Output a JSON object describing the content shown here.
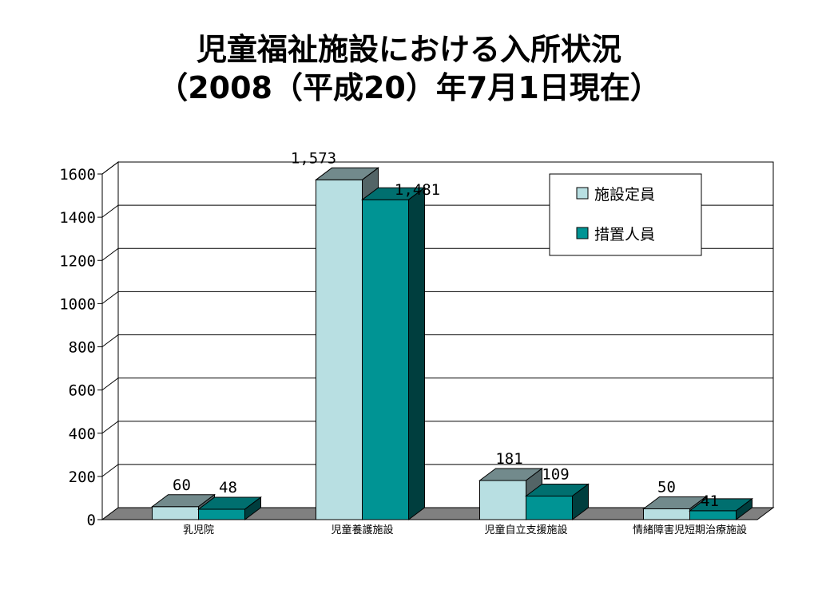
{
  "title_line1": "児童福祉施設における入所状況",
  "title_line2": "（2008（平成20）年7月1日現在）",
  "chart_data": {
    "type": "bar",
    "categories": [
      "乳児院",
      "児童養護施設",
      "児童自立支援施設",
      "情緒障害児短期治療施設"
    ],
    "series": [
      {
        "name": "施設定員",
        "values": [
          60,
          1573,
          181,
          50
        ],
        "labels": [
          "60",
          "1,573",
          "181",
          "50"
        ],
        "color": "#b8dfe2"
      },
      {
        "name": "措置人員",
        "values": [
          48,
          1481,
          109,
          41
        ],
        "labels": [
          "48",
          "1,481",
          "109",
          "41"
        ],
        "color": "#009494"
      }
    ],
    "ylim": [
      0,
      1600
    ],
    "yticks": [
      "0",
      "200",
      "400",
      "600",
      "800",
      "1000",
      "1200",
      "1400",
      "1600"
    ],
    "grid": true,
    "legend_position": "top-right",
    "style": "3d-column"
  }
}
